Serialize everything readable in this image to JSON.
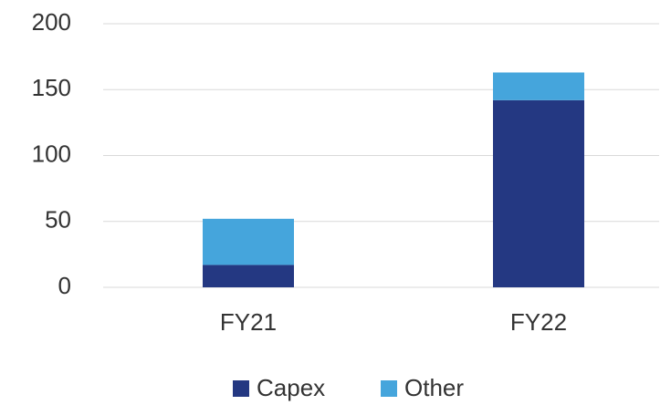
{
  "chart_data": {
    "type": "stacked_bar",
    "categories": [
      "FY21",
      "FY22"
    ],
    "series": [
      {
        "name": "Capex",
        "color": "#243882",
        "values": [
          17,
          142
        ]
      },
      {
        "name": "Other",
        "color": "#45a5dc",
        "values": [
          35,
          21
        ]
      }
    ],
    "ylim": [
      0,
      200
    ],
    "yticks": [
      0,
      50,
      100,
      150,
      200
    ],
    "grid": true,
    "legend": "bottom"
  }
}
